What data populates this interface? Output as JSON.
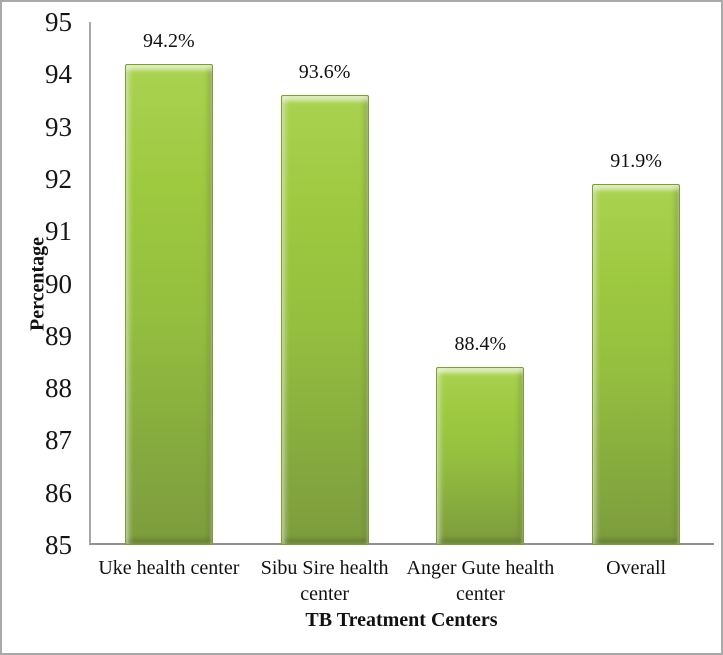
{
  "chart_data": {
    "type": "bar",
    "categories": [
      "Uke health center",
      "Sibu Sire health center",
      "Anger Gute health center",
      "Overall"
    ],
    "values": [
      94.2,
      93.6,
      88.4,
      91.9
    ],
    "data_labels": [
      "94.2%",
      "93.6%",
      "88.4%",
      "91.9%"
    ],
    "title": "",
    "xlabel": "TB Treatment Centers",
    "ylabel": "Percentage",
    "ylim": [
      85,
      95
    ],
    "yticks": [
      95,
      94,
      93,
      92,
      91,
      90,
      89,
      88,
      87,
      86,
      85
    ],
    "grid": false,
    "legend_position": "none",
    "bar_color": "#9CC83E",
    "bar_color_dark": "#7D9C3E",
    "bar_color_light": "#AAD251",
    "axis_color": "#A6A6A6",
    "frame_border_color": "#A9A9A9"
  }
}
